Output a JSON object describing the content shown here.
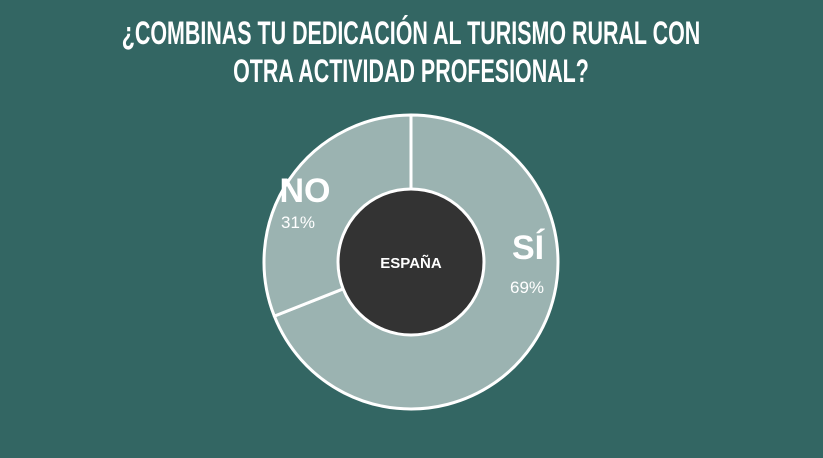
{
  "chart_data": {
    "type": "pie",
    "title": "¿COMBINAS TU DEDICACIÓN AL TURISMO RURAL CON OTRA ACTIVIDAD PROFESIONAL?",
    "center_label": "ESPAÑA",
    "categories": [
      "SÍ",
      "NO"
    ],
    "values": [
      69,
      31
    ],
    "value_labels": [
      "69%",
      "31%"
    ],
    "colors": [
      "#9bb3b1",
      "#9bb3b1"
    ]
  }
}
